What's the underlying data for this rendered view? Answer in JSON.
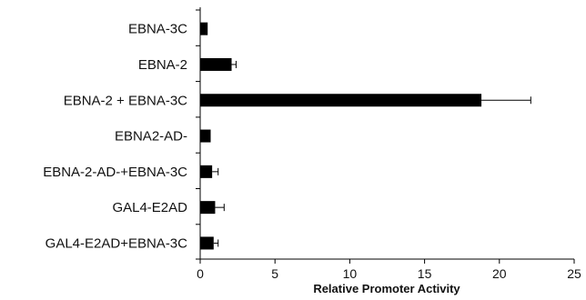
{
  "chart_data": {
    "type": "bar",
    "orientation": "horizontal",
    "title": "",
    "xlabel": "Relative Promoter Activity",
    "ylabel": "",
    "categories": [
      "EBNA-3C",
      "EBNA-2",
      "EBNA-2 + EBNA-3C",
      "EBNA2-AD-",
      "EBNA-2-AD-+EBNA-3C",
      "GAL4-E2AD",
      "GAL4-E2AD+EBNA-3C"
    ],
    "values": [
      0.5,
      2.1,
      18.8,
      0.7,
      0.8,
      1.0,
      0.9
    ],
    "errors": [
      0,
      0.3,
      3.3,
      0,
      0.4,
      0.6,
      0.3
    ],
    "xlim": [
      0,
      25
    ],
    "xticks": [
      0,
      5,
      10,
      15,
      20,
      25
    ],
    "grid": false,
    "legend": "none",
    "bar_color": "#000000",
    "axis_color": "#000000"
  }
}
